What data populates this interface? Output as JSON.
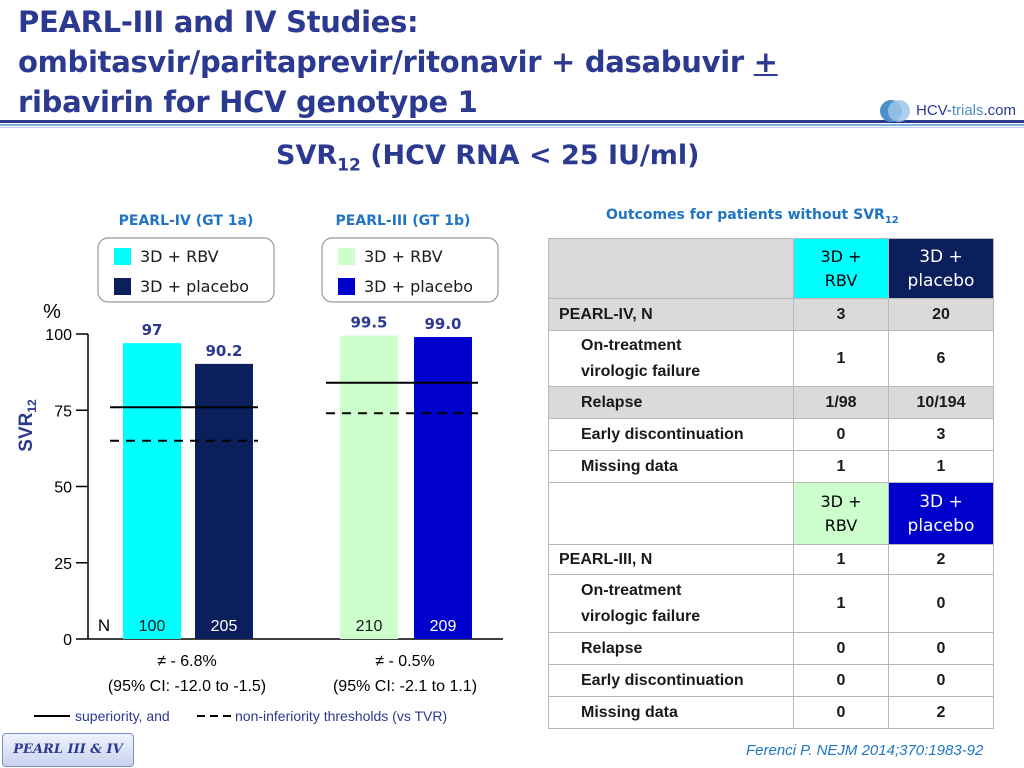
{
  "title": {
    "line1": "PEARL-III and IV Studies:",
    "line2_main": "ombitasvir/paritaprevir/ritonavir + dasabuvir ",
    "line2_plus": "+",
    "line3": "ribavirin for HCV genotype 1"
  },
  "logo": {
    "text_hcv": "HCV-",
    "text_trials": "trials",
    "text_com": ".com"
  },
  "subtitle": {
    "main": "SVR",
    "sub": "12",
    "rest": " (HCV RNA < 25 IU/ml)"
  },
  "colors": {
    "rbv_1a": "#00ffff",
    "placebo_1a": "#0a1f5c",
    "rbv_1b": "#ccffcc",
    "placebo_1b": "#0000cc",
    "title": "#2b3990",
    "accent": "#1f75c4"
  },
  "chart_data": {
    "type": "bar",
    "y_unit": "%",
    "ylabel": "SVR",
    "ylabel_sub": "12",
    "ylim": [
      0,
      100
    ],
    "yticks": [
      0,
      25,
      50,
      75,
      100
    ],
    "n_label": "N",
    "groups": [
      {
        "title": "PEARL-IV (GT 1a)",
        "legend": [
          {
            "label": "3D + RBV",
            "color": "#00ffff"
          },
          {
            "label": "3D + placebo",
            "color": "#0a1f5c"
          }
        ],
        "bars": [
          {
            "series": "3D + RBV",
            "value": 97,
            "label": "97",
            "n": "100",
            "color": "#00ffff"
          },
          {
            "series": "3D + placebo",
            "value": 90.2,
            "label": "90.2",
            "n": "205",
            "color": "#0a1f5c"
          }
        ],
        "superiority_threshold": 76,
        "noninferiority_threshold": 65,
        "difference": "≠ - 6.8%",
        "ci": "(95% CI: -12.0 to -1.5)"
      },
      {
        "title": "PEARL-III (GT 1b)",
        "legend": [
          {
            "label": "3D + RBV",
            "color": "#ccffcc"
          },
          {
            "label": "3D + placebo",
            "color": "#0000cc"
          }
        ],
        "bars": [
          {
            "series": "3D + RBV",
            "value": 99.5,
            "label": "99.5",
            "n": "210",
            "color": "#ccffcc"
          },
          {
            "series": "3D + placebo",
            "value": 99.0,
            "label": "99.0",
            "n": "209",
            "color": "#0000cc"
          }
        ],
        "superiority_threshold": 84,
        "noninferiority_threshold": 74,
        "difference": "≠ - 0.5%",
        "ci": "(95% CI: -2.1 to 1.1)"
      }
    ],
    "threshold_note_solid": "superiority, and",
    "threshold_note_dashed": "non-inferiority thresholds (vs TVR)"
  },
  "table": {
    "title_main": "Outcomes for patients without SVR",
    "title_sub": "12",
    "sections": [
      {
        "header_rbv": [
          "3D +",
          "RBV"
        ],
        "header_placebo": [
          "3D +",
          "placebo"
        ],
        "study": "PEARL-IV, N",
        "study_values": [
          "3",
          "20"
        ],
        "rows": [
          {
            "label": [
              "On-treatment",
              "virologic  failure"
            ],
            "values": [
              "1",
              "6"
            ]
          },
          {
            "label": [
              "Relapse"
            ],
            "values": [
              "1/98",
              "10/194"
            ]
          },
          {
            "label": [
              "Early discontinuation"
            ],
            "values": [
              "0",
              "3"
            ]
          },
          {
            "label": [
              "Missing data"
            ],
            "values": [
              "1",
              "1"
            ]
          }
        ]
      },
      {
        "header_rbv": [
          "3D +",
          "RBV"
        ],
        "header_placebo": [
          "3D +",
          "placebo"
        ],
        "study": "PEARL-III, N",
        "study_values": [
          "1",
          "2"
        ],
        "rows": [
          {
            "label": [
              "On-treatment",
              "virologic failure"
            ],
            "values": [
              "1",
              "0"
            ]
          },
          {
            "label": [
              "Relapse"
            ],
            "values": [
              "0",
              "0"
            ]
          },
          {
            "label": [
              "Early discontinuation"
            ],
            "values": [
              "0",
              "0"
            ]
          },
          {
            "label": [
              "Missing data"
            ],
            "values": [
              "0",
              "2"
            ]
          }
        ]
      }
    ]
  },
  "badge": "PEARL III & IV",
  "citation": "Ferenci P. NEJM 2014;370:1983-92"
}
